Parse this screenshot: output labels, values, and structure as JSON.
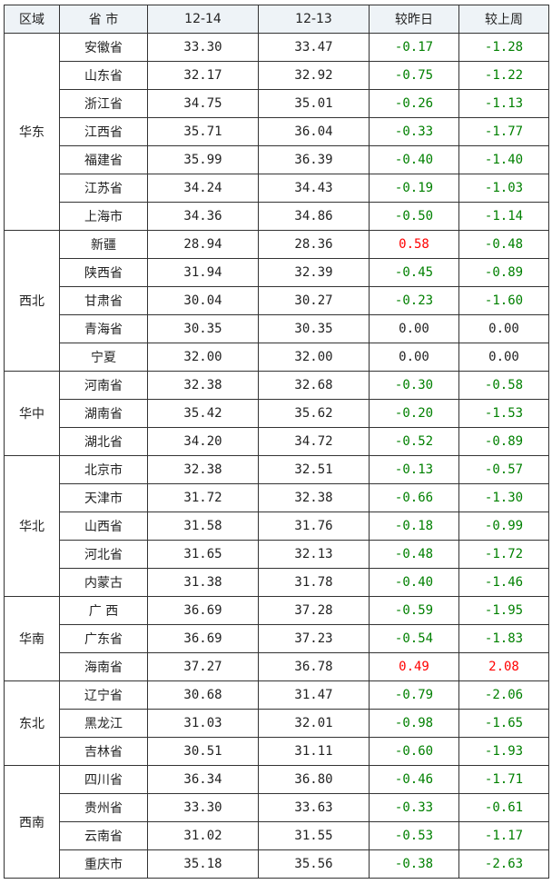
{
  "headers": [
    "区域",
    "省 市",
    "12-14",
    "12-13",
    "较昨日",
    "较上周"
  ],
  "colors": {
    "decrease": "#008000",
    "increase": "#ff0000",
    "header_bg": "#eef3f7"
  },
  "groups": [
    {
      "region": "华东",
      "rows": [
        [
          "安徽省",
          "33.30",
          "33.47",
          "-0.17",
          "-1.28"
        ],
        [
          "山东省",
          "32.17",
          "32.92",
          "-0.75",
          "-1.22"
        ],
        [
          "浙江省",
          "34.75",
          "35.01",
          "-0.26",
          "-1.13"
        ],
        [
          "江西省",
          "35.71",
          "36.04",
          "-0.33",
          "-1.77"
        ],
        [
          "福建省",
          "35.99",
          "36.39",
          "-0.40",
          "-1.40"
        ],
        [
          "江苏省",
          "34.24",
          "34.43",
          "-0.19",
          "-1.03"
        ],
        [
          "上海市",
          "34.36",
          "34.86",
          "-0.50",
          "-1.14"
        ]
      ]
    },
    {
      "region": "西北",
      "rows": [
        [
          "新疆",
          "28.94",
          "28.36",
          "0.58",
          "-0.48"
        ],
        [
          "陕西省",
          "31.94",
          "32.39",
          "-0.45",
          "-0.89"
        ],
        [
          "甘肃省",
          "30.04",
          "30.27",
          "-0.23",
          "-1.60"
        ],
        [
          "青海省",
          "30.35",
          "30.35",
          "0.00",
          "0.00"
        ],
        [
          "宁夏",
          "32.00",
          "32.00",
          "0.00",
          "0.00"
        ]
      ]
    },
    {
      "region": "华中",
      "rows": [
        [
          "河南省",
          "32.38",
          "32.68",
          "-0.30",
          "-0.58"
        ],
        [
          "湖南省",
          "35.42",
          "35.62",
          "-0.20",
          "-1.53"
        ],
        [
          "湖北省",
          "34.20",
          "34.72",
          "-0.52",
          "-0.89"
        ]
      ]
    },
    {
      "region": "华北",
      "rows": [
        [
          "北京市",
          "32.38",
          "32.51",
          "-0.13",
          "-0.57"
        ],
        [
          "天津市",
          "31.72",
          "32.38",
          "-0.66",
          "-1.30"
        ],
        [
          "山西省",
          "31.58",
          "31.76",
          "-0.18",
          "-0.99"
        ],
        [
          "河北省",
          "31.65",
          "32.13",
          "-0.48",
          "-1.72"
        ],
        [
          "内蒙古",
          "31.38",
          "31.78",
          "-0.40",
          "-1.46"
        ]
      ]
    },
    {
      "region": "华南",
      "rows": [
        [
          "广 西",
          "36.69",
          "37.28",
          "-0.59",
          "-1.95"
        ],
        [
          "广东省",
          "36.69",
          "37.23",
          "-0.54",
          "-1.83"
        ],
        [
          "海南省",
          "37.27",
          "36.78",
          "0.49",
          "2.08"
        ]
      ]
    },
    {
      "region": "东北",
      "rows": [
        [
          "辽宁省",
          "30.68",
          "31.47",
          "-0.79",
          "-2.06"
        ],
        [
          "黑龙江",
          "31.03",
          "32.01",
          "-0.98",
          "-1.65"
        ],
        [
          "吉林省",
          "30.51",
          "31.11",
          "-0.60",
          "-1.93"
        ]
      ]
    },
    {
      "region": "西南",
      "rows": [
        [
          "四川省",
          "36.34",
          "36.80",
          "-0.46",
          "-1.71"
        ],
        [
          "贵州省",
          "33.30",
          "33.63",
          "-0.33",
          "-0.61"
        ],
        [
          "云南省",
          "31.02",
          "31.55",
          "-0.53",
          "-1.17"
        ],
        [
          "重庆市",
          "35.18",
          "35.56",
          "-0.38",
          "-2.63"
        ]
      ]
    }
  ]
}
